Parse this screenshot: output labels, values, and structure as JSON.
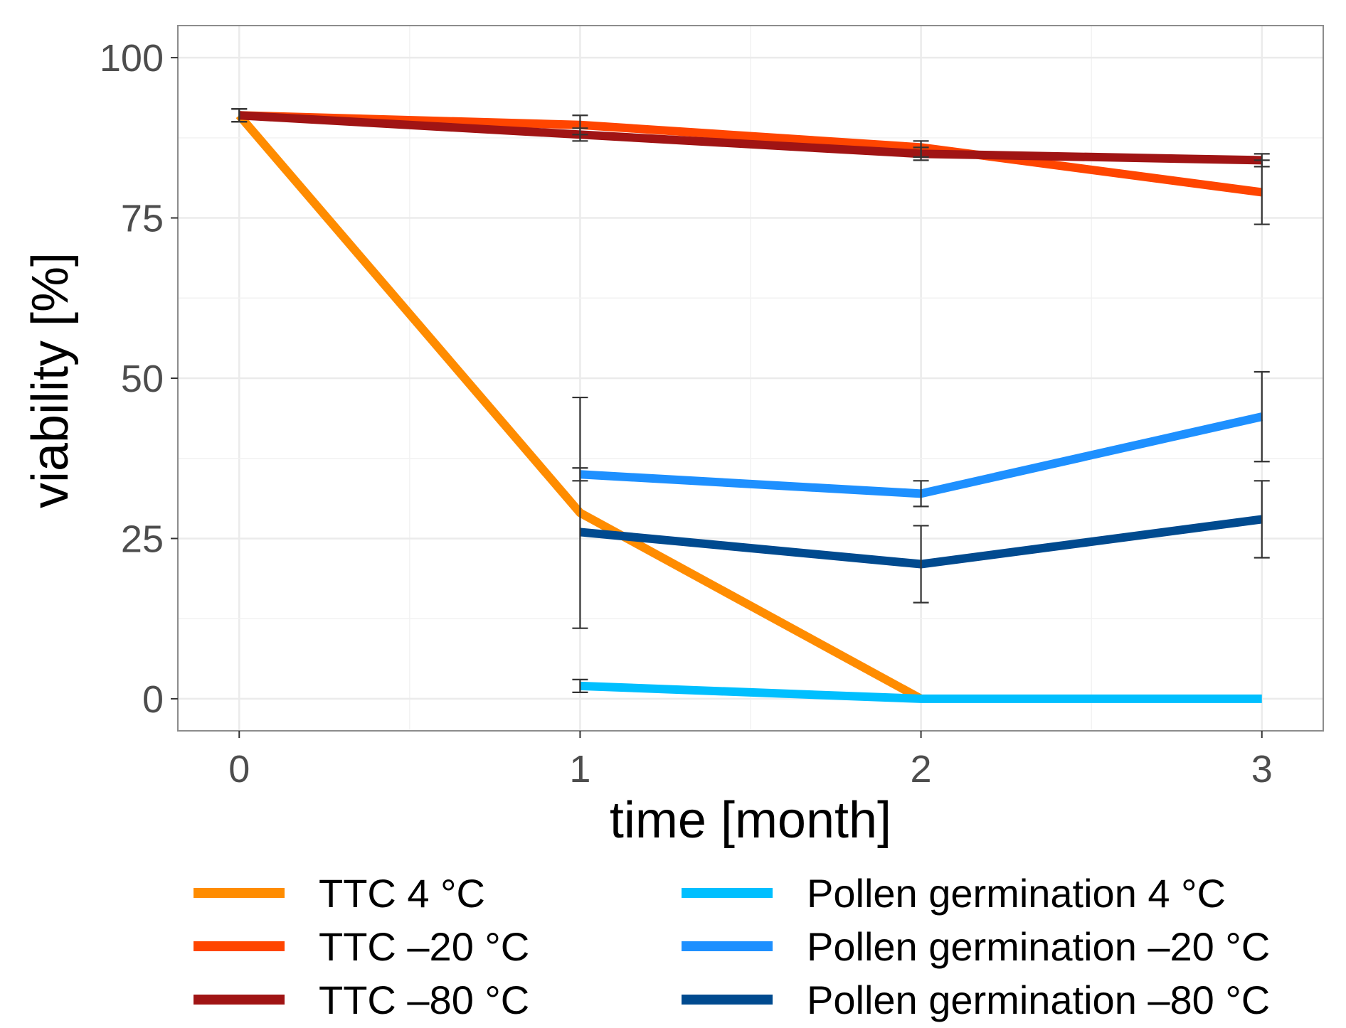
{
  "chart_data": {
    "type": "line",
    "xlabel": "time [month]",
    "ylabel": "viability [%]",
    "xlim": [
      -0.18,
      3.18
    ],
    "ylim": [
      -5,
      105
    ],
    "x_ticks": [
      "0",
      "1",
      "2",
      "3"
    ],
    "y_ticks": [
      "0",
      "25",
      "50",
      "75",
      "100"
    ],
    "grid": true,
    "legend_position": "bottom",
    "series": [
      {
        "name": "TTC 4 °C",
        "color": "#ff8c00",
        "x": [
          0,
          1,
          2
        ],
        "y": [
          91,
          29,
          0
        ],
        "err_low": [
          null,
          null,
          null
        ],
        "err_high": [
          null,
          null,
          null
        ]
      },
      {
        "name": "TTC –20 °C",
        "color": "#ff4500",
        "x": [
          0,
          1,
          2,
          3
        ],
        "y": [
          91,
          89.5,
          86,
          79
        ],
        "err_low": [
          90,
          88,
          84.5,
          74
        ],
        "err_high": [
          92,
          91,
          87,
          84
        ]
      },
      {
        "name": "TTC –80 °C",
        "color": "#a01414",
        "x": [
          0,
          1,
          2,
          3
        ],
        "y": [
          91,
          88,
          85,
          84
        ],
        "err_low": [
          90,
          87,
          84,
          83
        ],
        "err_high": [
          92,
          89,
          86,
          85
        ]
      },
      {
        "name": "Pollen germination 4 °C",
        "color": "#00bfff",
        "x": [
          1,
          2,
          3
        ],
        "y": [
          2,
          0,
          0
        ],
        "err_low": [
          1,
          null,
          null
        ],
        "err_high": [
          3,
          null,
          null
        ]
      },
      {
        "name": "Pollen germination –20 °C",
        "color": "#1e90ff",
        "x": [
          1,
          2,
          3
        ],
        "y": [
          35,
          32,
          44
        ],
        "err_low": [
          34,
          30,
          37
        ],
        "err_high": [
          36,
          34,
          51
        ]
      },
      {
        "name": "Pollen germination –80 °C",
        "color": "#004a8f",
        "x": [
          1,
          2,
          3
        ],
        "y": [
          26,
          21,
          28
        ],
        "err_low": [
          11,
          15,
          22
        ],
        "err_high": [
          47,
          27,
          34
        ]
      }
    ]
  }
}
